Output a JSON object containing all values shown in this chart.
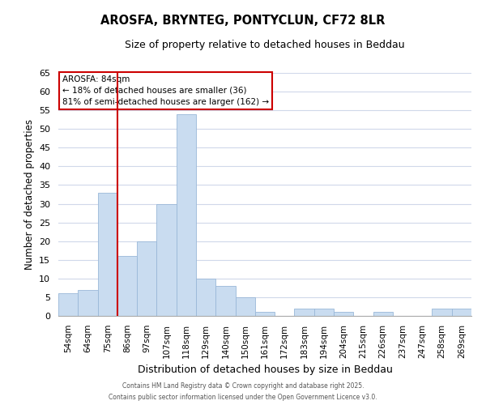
{
  "title": "AROSFA, BRYNTEG, PONTYCLUN, CF72 8LR",
  "subtitle": "Size of property relative to detached houses in Beddau",
  "xlabel": "Distribution of detached houses by size in Beddau",
  "ylabel": "Number of detached properties",
  "bar_color": "#c9dcf0",
  "bar_edge_color": "#9ab8d8",
  "categories": [
    "54sqm",
    "64sqm",
    "75sqm",
    "86sqm",
    "97sqm",
    "107sqm",
    "118sqm",
    "129sqm",
    "140sqm",
    "150sqm",
    "161sqm",
    "172sqm",
    "183sqm",
    "194sqm",
    "204sqm",
    "215sqm",
    "226sqm",
    "237sqm",
    "247sqm",
    "258sqm",
    "269sqm"
  ],
  "values": [
    6,
    7,
    33,
    16,
    20,
    30,
    54,
    10,
    8,
    5,
    1,
    0,
    2,
    2,
    1,
    0,
    1,
    0,
    0,
    2,
    2
  ],
  "ylim": [
    0,
    65
  ],
  "yticks": [
    0,
    5,
    10,
    15,
    20,
    25,
    30,
    35,
    40,
    45,
    50,
    55,
    60,
    65
  ],
  "vline_color": "#cc0000",
  "annotation_title": "AROSFA: 84sqm",
  "annotation_line1": "← 18% of detached houses are smaller (36)",
  "annotation_line2": "81% of semi-detached houses are larger (162) →",
  "annotation_box_color": "#ffffff",
  "annotation_box_edge": "#cc0000",
  "footnote1": "Contains HM Land Registry data © Crown copyright and database right 2025.",
  "footnote2": "Contains public sector information licensed under the Open Government Licence v3.0.",
  "background_color": "#ffffff",
  "grid_color": "#d0d8ea"
}
